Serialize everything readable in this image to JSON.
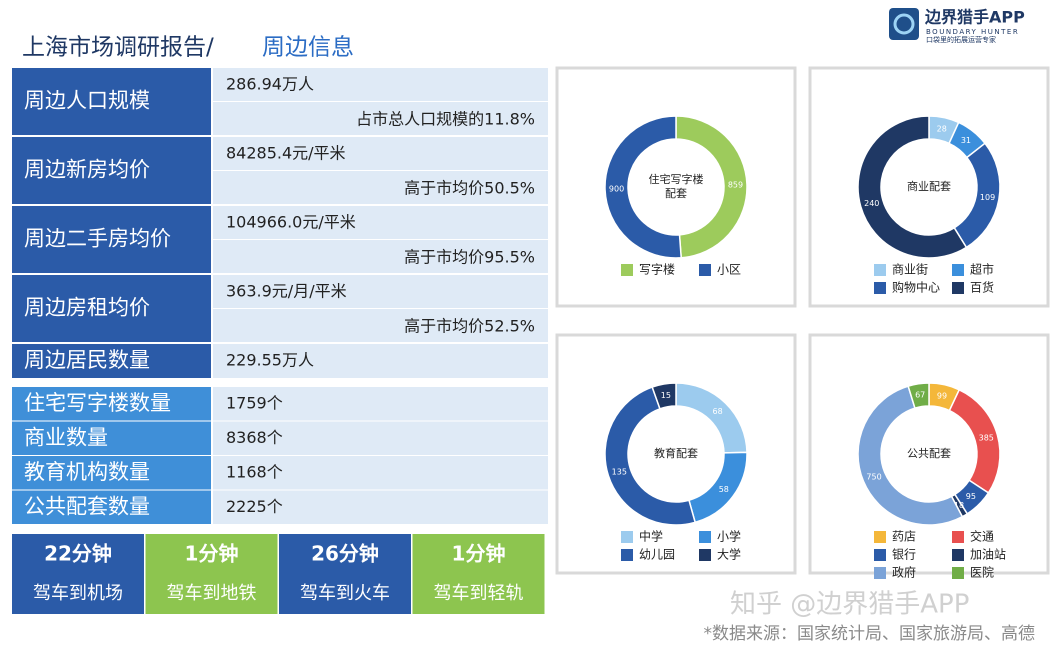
{
  "header": {
    "title": "上海市场调研报告/",
    "subtitle": "周边信息"
  },
  "logo": {
    "name": "边界猎手APP",
    "english": "BOUNDARY HUNTER",
    "slogan": "口袋里的拓展运营专家"
  },
  "stats": [
    {
      "label": "周边人口规模",
      "value": "286.94万人",
      "note": "占市总人口规模的11.8%"
    },
    {
      "label": "周边新房均价",
      "value": "84285.4元/平米",
      "note": "高于市均价50.5%"
    },
    {
      "label": "周边二手房均价",
      "value": "104966.0元/平米",
      "note": "高于市均价95.5%"
    },
    {
      "label": "周边房租均价",
      "value": "363.9元/月/平米",
      "note": "高于市均价52.5%"
    },
    {
      "label": "周边居民数量",
      "value": "229.55万人"
    }
  ],
  "counts": [
    {
      "label": "住宅写字楼数量",
      "value": "1759个"
    },
    {
      "label": "商业数量",
      "value": "8368个"
    },
    {
      "label": "教育机构数量",
      "value": "1168个"
    },
    {
      "label": "公共配套数量",
      "value": "2225个"
    }
  ],
  "travel": [
    {
      "time": "22分钟",
      "desc": "驾车到机场"
    },
    {
      "time": "1分钟",
      "desc": "驾车到地铁"
    },
    {
      "time": "26分钟",
      "desc": "驾车到火车"
    },
    {
      "time": "1分钟",
      "desc": "驾车到轻轨"
    }
  ],
  "charts": [
    {
      "type": "pie",
      "center_label": [
        "住宅写字楼",
        "配套"
      ],
      "categories": [
        "写字楼",
        "小区"
      ],
      "values": [
        859,
        900
      ],
      "colors": [
        "#9dcb5c",
        "#2b5ba8"
      ]
    },
    {
      "type": "pie",
      "center_label": [
        "商业配套"
      ],
      "categories": [
        "商业街",
        "超市",
        "购物中心",
        "百货"
      ],
      "values": [
        28,
        31,
        109,
        240
      ],
      "colors": [
        "#9ccbee",
        "#3b8fdc",
        "#2b5ba8",
        "#1f3864"
      ]
    },
    {
      "type": "pie",
      "center_label": [
        "教育配套"
      ],
      "categories": [
        "中学",
        "小学",
        "幼儿园",
        "大学"
      ],
      "values": [
        68,
        58,
        135,
        15
      ],
      "colors": [
        "#9ccbee",
        "#3b8fdc",
        "#2b5ba8",
        "#1f3864"
      ]
    },
    {
      "type": "pie",
      "center_label": [
        "公共配套"
      ],
      "categories": [
        "药店",
        "交通",
        "银行",
        "加油站",
        "政府",
        "医院"
      ],
      "values": [
        99,
        385,
        95,
        18,
        750,
        67
      ],
      "colors": [
        "#f4b73a",
        "#e8504f",
        "#2b5ba8",
        "#1f3864",
        "#7ba3d8",
        "#70ad47"
      ]
    }
  ],
  "watermark": "知乎 @边界猎手APP",
  "source": "*数据来源：国家统计局、国家旅游局、高德"
}
